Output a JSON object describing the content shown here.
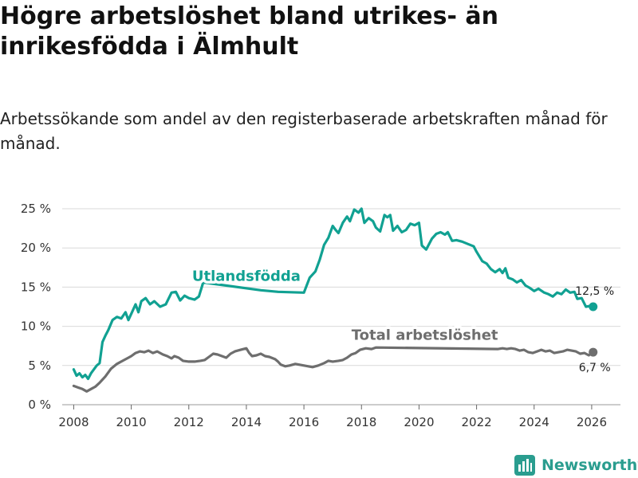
{
  "title": "Högre arbetslöshet bland utrikes- än inrikesfödda i Älmhult",
  "subtitle": "Arbetssökande som andel av den registerbaserade arbetskraften månad för månad.",
  "logo": {
    "text": "Newsworthy",
    "icon": "bar-chart-icon"
  },
  "colors": {
    "foreign": "#11a192",
    "total": "#6e6e6e",
    "grid": "#d9d9d9",
    "brand": "#2a9d8f"
  },
  "chart_data": {
    "type": "line",
    "title": "Högre arbetslöshet bland utrikes- än inrikesfödda i Älmhult",
    "subtitle": "Arbetssökande som andel av den registerbaserade arbetskraften månad för månad.",
    "xlabel": "",
    "ylabel": "",
    "xlim": [
      2007.6,
      2027.0
    ],
    "ylim": [
      0,
      25
    ],
    "x_ticks": [
      2008,
      2010,
      2012,
      2014,
      2016,
      2018,
      2020,
      2022,
      2024,
      2026
    ],
    "y_ticks": [
      {
        "value": 0,
        "label": "0 %"
      },
      {
        "value": 5,
        "label": "5 %"
      },
      {
        "value": 10,
        "label": "10 %"
      },
      {
        "value": 15,
        "label": "15 %"
      },
      {
        "value": 20,
        "label": "20 %"
      },
      {
        "value": 25,
        "label": "25 %"
      }
    ],
    "grid": true,
    "series": [
      {
        "name": "Utlandsfödda",
        "color": "#11a192",
        "end_label": "12,5 %",
        "points": [
          [
            2008.0,
            4.5
          ],
          [
            2008.1,
            3.7
          ],
          [
            2008.2,
            4.0
          ],
          [
            2008.3,
            3.5
          ],
          [
            2008.4,
            3.8
          ],
          [
            2008.5,
            3.3
          ],
          [
            2008.6,
            4.0
          ],
          [
            2008.7,
            4.5
          ],
          [
            2008.8,
            5.0
          ],
          [
            2008.9,
            5.3
          ],
          [
            2009.0,
            8.0
          ],
          [
            2009.1,
            8.8
          ],
          [
            2009.2,
            9.5
          ],
          [
            2009.35,
            10.8
          ],
          [
            2009.5,
            11.2
          ],
          [
            2009.65,
            11.0
          ],
          [
            2009.8,
            11.8
          ],
          [
            2009.9,
            10.8
          ],
          [
            2010.0,
            11.6
          ],
          [
            2010.15,
            12.8
          ],
          [
            2010.25,
            11.8
          ],
          [
            2010.35,
            13.2
          ],
          [
            2010.5,
            13.6
          ],
          [
            2010.65,
            12.8
          ],
          [
            2010.8,
            13.2
          ],
          [
            2011.0,
            12.5
          ],
          [
            2011.2,
            12.8
          ],
          [
            2011.4,
            14.3
          ],
          [
            2011.55,
            14.4
          ],
          [
            2011.7,
            13.3
          ],
          [
            2011.85,
            13.9
          ],
          [
            2012.0,
            13.6
          ],
          [
            2012.2,
            13.4
          ],
          [
            2012.35,
            13.8
          ],
          [
            2012.5,
            15.6
          ],
          [
            2014.5,
            14.6
          ],
          [
            2015.1,
            14.4
          ],
          [
            2016.0,
            14.3
          ],
          [
            2016.2,
            16.2
          ],
          [
            2016.4,
            17.0
          ],
          [
            2016.55,
            18.5
          ],
          [
            2016.7,
            20.4
          ],
          [
            2016.85,
            21.3
          ],
          [
            2017.0,
            22.8
          ],
          [
            2017.1,
            22.3
          ],
          [
            2017.2,
            21.9
          ],
          [
            2017.35,
            23.2
          ],
          [
            2017.5,
            24.0
          ],
          [
            2017.6,
            23.4
          ],
          [
            2017.75,
            24.9
          ],
          [
            2017.9,
            24.5
          ],
          [
            2018.0,
            25.0
          ],
          [
            2018.1,
            23.2
          ],
          [
            2018.25,
            23.8
          ],
          [
            2018.4,
            23.4
          ],
          [
            2018.5,
            22.6
          ],
          [
            2018.65,
            22.1
          ],
          [
            2018.8,
            24.2
          ],
          [
            2018.9,
            23.9
          ],
          [
            2019.0,
            24.2
          ],
          [
            2019.1,
            22.2
          ],
          [
            2019.25,
            22.8
          ],
          [
            2019.4,
            22.0
          ],
          [
            2019.55,
            22.3
          ],
          [
            2019.7,
            23.1
          ],
          [
            2019.85,
            22.9
          ],
          [
            2020.0,
            23.2
          ],
          [
            2020.1,
            20.3
          ],
          [
            2020.25,
            19.8
          ],
          [
            2020.45,
            21.2
          ],
          [
            2020.6,
            21.8
          ],
          [
            2020.75,
            22.0
          ],
          [
            2020.9,
            21.7
          ],
          [
            2021.0,
            22.0
          ],
          [
            2021.15,
            20.9
          ],
          [
            2021.3,
            21.0
          ],
          [
            2021.5,
            20.8
          ],
          [
            2021.7,
            20.5
          ],
          [
            2021.9,
            20.2
          ],
          [
            2022.0,
            19.5
          ],
          [
            2022.2,
            18.3
          ],
          [
            2022.35,
            18.0
          ],
          [
            2022.5,
            17.3
          ],
          [
            2022.65,
            16.9
          ],
          [
            2022.8,
            17.3
          ],
          [
            2022.9,
            16.8
          ],
          [
            2023.0,
            17.4
          ],
          [
            2023.1,
            16.2
          ],
          [
            2023.25,
            16.0
          ],
          [
            2023.4,
            15.6
          ],
          [
            2023.55,
            15.9
          ],
          [
            2023.7,
            15.2
          ],
          [
            2023.85,
            14.9
          ],
          [
            2024.0,
            14.5
          ],
          [
            2024.15,
            14.8
          ],
          [
            2024.35,
            14.3
          ],
          [
            2024.5,
            14.1
          ],
          [
            2024.65,
            13.8
          ],
          [
            2024.8,
            14.3
          ],
          [
            2024.95,
            14.1
          ],
          [
            2025.1,
            14.7
          ],
          [
            2025.25,
            14.3
          ],
          [
            2025.4,
            14.4
          ],
          [
            2025.5,
            13.5
          ],
          [
            2025.65,
            13.6
          ],
          [
            2025.8,
            12.5
          ],
          [
            2025.95,
            12.6
          ],
          [
            2026.05,
            12.5
          ]
        ]
      },
      {
        "name": "Total arbetslöshet",
        "color": "#6e6e6e",
        "end_label": "6,7 %",
        "points": [
          [
            2008.0,
            2.4
          ],
          [
            2008.15,
            2.2
          ],
          [
            2008.3,
            2.0
          ],
          [
            2008.45,
            1.7
          ],
          [
            2008.6,
            2.0
          ],
          [
            2008.75,
            2.3
          ],
          [
            2008.9,
            2.8
          ],
          [
            2009.1,
            3.6
          ],
          [
            2009.3,
            4.6
          ],
          [
            2009.5,
            5.2
          ],
          [
            2009.7,
            5.6
          ],
          [
            2009.9,
            6.0
          ],
          [
            2010.0,
            6.2
          ],
          [
            2010.15,
            6.6
          ],
          [
            2010.3,
            6.8
          ],
          [
            2010.45,
            6.7
          ],
          [
            2010.6,
            6.9
          ],
          [
            2010.75,
            6.6
          ],
          [
            2010.9,
            6.8
          ],
          [
            2011.1,
            6.4
          ],
          [
            2011.25,
            6.2
          ],
          [
            2011.4,
            5.9
          ],
          [
            2011.5,
            6.2
          ],
          [
            2011.65,
            6.0
          ],
          [
            2011.8,
            5.6
          ],
          [
            2012.0,
            5.5
          ],
          [
            2012.2,
            5.5
          ],
          [
            2012.4,
            5.6
          ],
          [
            2012.55,
            5.7
          ],
          [
            2012.7,
            6.1
          ],
          [
            2012.85,
            6.5
          ],
          [
            2013.0,
            6.4
          ],
          [
            2013.15,
            6.2
          ],
          [
            2013.3,
            6.0
          ],
          [
            2013.45,
            6.5
          ],
          [
            2013.6,
            6.8
          ],
          [
            2013.8,
            7.0
          ],
          [
            2014.0,
            7.2
          ],
          [
            2014.1,
            6.6
          ],
          [
            2014.2,
            6.2
          ],
          [
            2014.35,
            6.3
          ],
          [
            2014.5,
            6.5
          ],
          [
            2014.65,
            6.2
          ],
          [
            2014.8,
            6.1
          ],
          [
            2015.0,
            5.8
          ],
          [
            2015.1,
            5.5
          ],
          [
            2015.2,
            5.1
          ],
          [
            2015.35,
            4.9
          ],
          [
            2015.5,
            5.0
          ],
          [
            2015.7,
            5.2
          ],
          [
            2015.85,
            5.1
          ],
          [
            2016.0,
            5.0
          ],
          [
            2016.15,
            4.9
          ],
          [
            2016.3,
            4.8
          ],
          [
            2016.5,
            5.0
          ],
          [
            2016.7,
            5.3
          ],
          [
            2016.85,
            5.6
          ],
          [
            2017.0,
            5.5
          ],
          [
            2017.2,
            5.6
          ],
          [
            2017.35,
            5.7
          ],
          [
            2017.5,
            6.0
          ],
          [
            2017.65,
            6.4
          ],
          [
            2017.8,
            6.6
          ],
          [
            2017.95,
            7.0
          ],
          [
            2018.15,
            7.2
          ],
          [
            2018.35,
            7.1
          ],
          [
            2018.5,
            7.3
          ],
          [
            2022.75,
            7.1
          ],
          [
            2022.9,
            7.2
          ],
          [
            2023.05,
            7.1
          ],
          [
            2023.2,
            7.2
          ],
          [
            2023.35,
            7.1
          ],
          [
            2023.5,
            6.9
          ],
          [
            2023.65,
            7.0
          ],
          [
            2023.8,
            6.7
          ],
          [
            2023.95,
            6.6
          ],
          [
            2024.1,
            6.8
          ],
          [
            2024.25,
            7.0
          ],
          [
            2024.4,
            6.8
          ],
          [
            2024.55,
            6.9
          ],
          [
            2024.7,
            6.6
          ],
          [
            2024.85,
            6.7
          ],
          [
            2025.0,
            6.8
          ],
          [
            2025.15,
            7.0
          ],
          [
            2025.3,
            6.9
          ],
          [
            2025.45,
            6.8
          ],
          [
            2025.6,
            6.5
          ],
          [
            2025.75,
            6.6
          ],
          [
            2025.9,
            6.3
          ],
          [
            2026.05,
            6.7
          ]
        ]
      }
    ],
    "annotations": [
      {
        "series": "Utlandsfödda",
        "text": "Utlandsfödda",
        "x": 2014.0,
        "y": 15.8
      },
      {
        "series": "Total arbetslöshet",
        "text": "Total arbetslöshet",
        "x": 2020.2,
        "y": 8.3
      }
    ]
  }
}
